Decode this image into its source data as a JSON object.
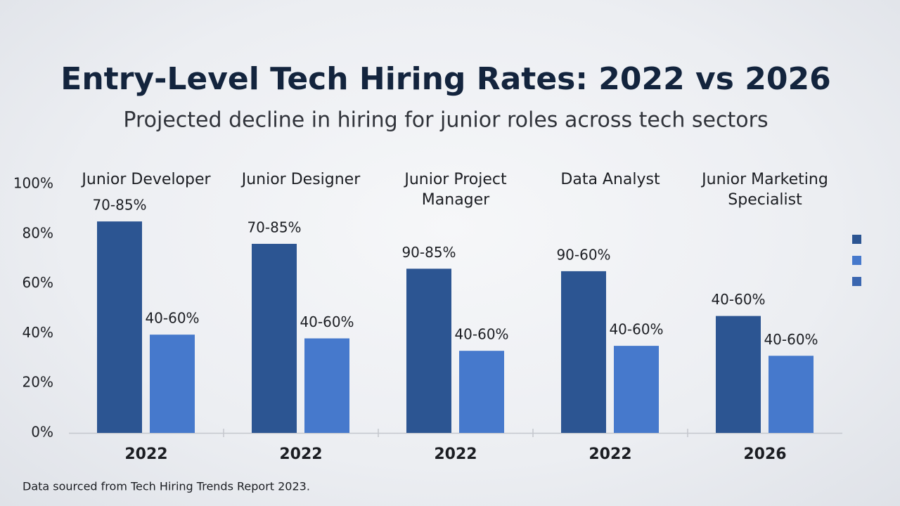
{
  "chart_data": {
    "type": "bar",
    "title": "Entry-Level Tech Hiring Rates: 2022 vs 2026",
    "subtitle": "Projected decline in hiring for junior roles across tech sectors",
    "categories": [
      "Junior Developer",
      "Junior Designer",
      "Junior Project Manager",
      "Data Analyst",
      "Junior Marketing Specialist"
    ],
    "x_labels": [
      "2022",
      "2022",
      "2022",
      "2022",
      "2026"
    ],
    "series": [
      {
        "color": "#2c5592",
        "values": [
          85,
          76,
          66,
          65,
          47
        ],
        "value_labels": [
          "70-85%",
          "70-85%",
          "90-85%",
          "90-60%",
          "40-60%"
        ]
      },
      {
        "color": "#4679cc",
        "values": [
          39.5,
          38,
          33,
          35,
          31
        ],
        "value_labels": [
          "40-60%",
          "40-60%",
          "40-60%",
          "40-60%",
          "40-60%"
        ]
      }
    ],
    "ylim": [
      0,
      100
    ],
    "yticks": [
      {
        "value": 0,
        "label": "0%"
      },
      {
        "value": 20,
        "label": "20%"
      },
      {
        "value": 40,
        "label": "40%"
      },
      {
        "value": 60,
        "label": "60%"
      },
      {
        "value": 80,
        "label": "80%"
      },
      {
        "value": 100,
        "label": "100%"
      }
    ],
    "grid": false,
    "source": "Data sourced from Tech Hiring Trends Report 2023."
  }
}
